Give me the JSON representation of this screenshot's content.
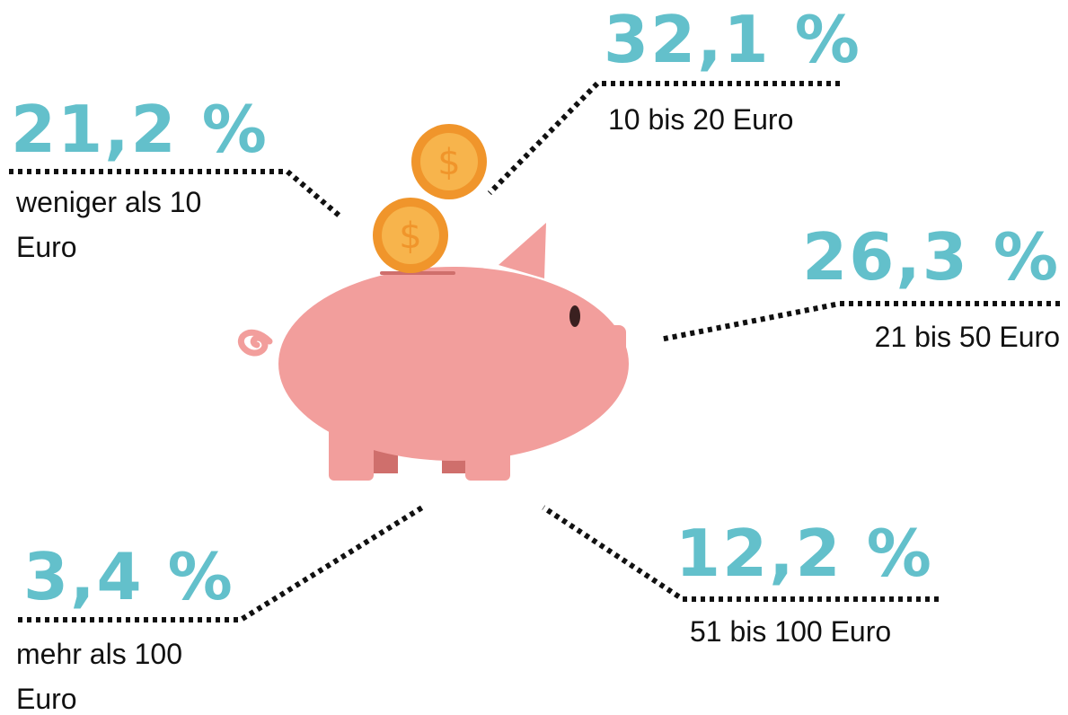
{
  "items": [
    {
      "percent": "21,2 %",
      "label": "weniger als 10 Euro"
    },
    {
      "percent": "32,1 %",
      "label": "10 bis 20 Euro"
    },
    {
      "percent": "26,3 %",
      "label": "21 bis 50 Euro"
    },
    {
      "percent": "12,2 %",
      "label": "51 bis 100 Euro"
    },
    {
      "percent": "3,4 %",
      "label": "mehr als 100 Euro"
    }
  ]
}
